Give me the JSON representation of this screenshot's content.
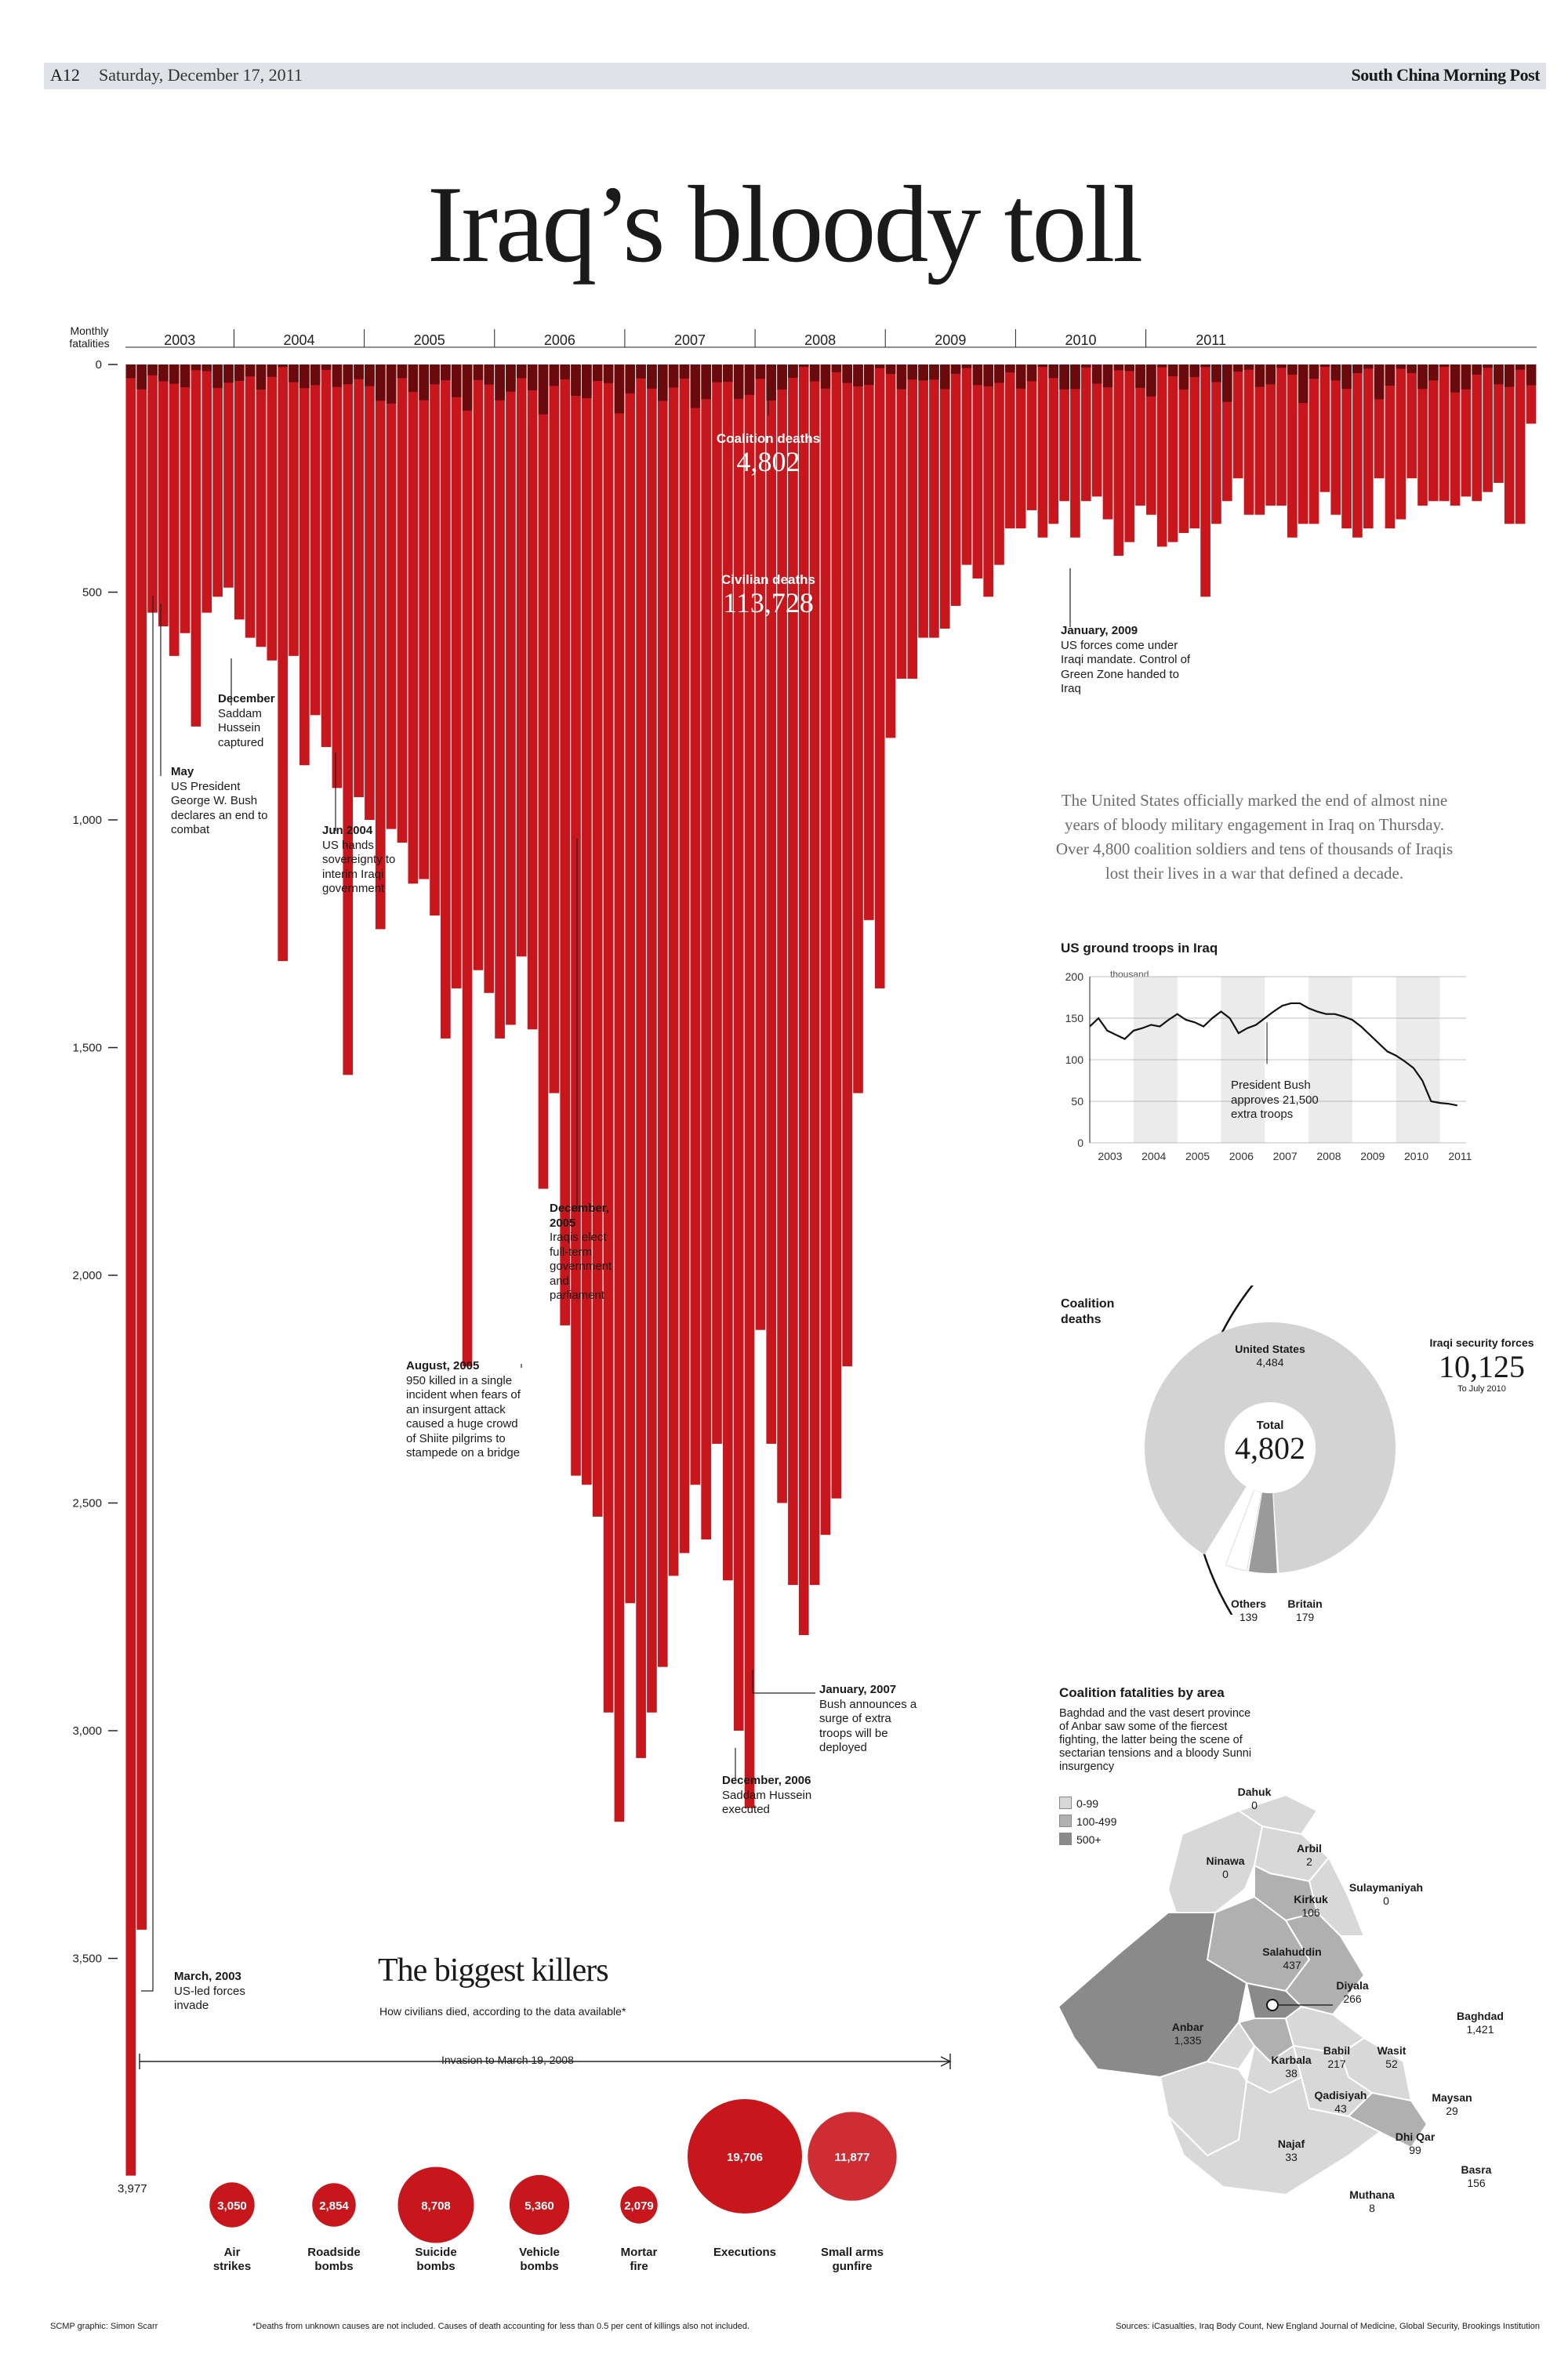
{
  "masthead": {
    "page": "A12",
    "date": "Saturday, December 17, 2011",
    "publication": "South China Morning Post"
  },
  "title": "Iraq’s bloody toll",
  "chart_data": [
    {
      "type": "bar",
      "ylabel": "Monthly fatalities",
      "ylim": [
        0,
        3977
      ],
      "y_inverted": true,
      "yticks": [
        "0",
        "500",
        "1,000",
        "1,500",
        "2,000",
        "2,500",
        "3,000",
        "3,500"
      ],
      "ytick_values": [
        0,
        500,
        1000,
        1500,
        2000,
        2500,
        3000,
        3500
      ],
      "year_labels": [
        "2003",
        "2004",
        "2005",
        "2006",
        "2007",
        "2008",
        "2009",
        "2010",
        "2011"
      ],
      "start_month": "2003-03",
      "civilian_values": [
        3977,
        3437,
        545,
        575,
        640,
        590,
        795,
        545,
        510,
        490,
        560,
        600,
        620,
        650,
        1310,
        640,
        880,
        770,
        840,
        930,
        1560,
        950,
        1000,
        1240,
        1020,
        1050,
        1140,
        1130,
        1210,
        1480,
        1370,
        2200,
        1330,
        1380,
        1480,
        1450,
        1300,
        1460,
        1810,
        1600,
        2110,
        2440,
        2460,
        2530,
        2960,
        3200,
        2720,
        3060,
        2960,
        2860,
        2660,
        2610,
        2460,
        2580,
        2370,
        2670,
        3000,
        3170,
        2120,
        2370,
        2500,
        2680,
        2790,
        2680,
        2570,
        2490,
        2200,
        1600,
        1220,
        1370,
        820,
        690,
        690,
        600,
        600,
        580,
        530,
        440,
        470,
        510,
        440,
        360,
        360,
        320,
        380,
        350,
        300,
        380,
        300,
        290,
        340,
        420,
        390,
        310,
        330,
        400,
        390,
        370,
        360,
        510,
        350,
        300,
        250,
        330,
        330,
        310,
        310,
        380,
        350,
        350,
        280,
        330,
        360,
        380,
        360,
        250,
        360,
        340,
        250,
        310,
        300,
        300,
        310,
        290,
        300,
        280,
        260,
        350,
        350,
        130
      ],
      "coalition_deaths": "4,802",
      "coalition_label": "Coalition deaths",
      "civilian_deaths": "113,728",
      "civilian_label": "Civilian deaths",
      "colors": {
        "civilian": "#c8161d",
        "coalition": "#6a0a0d"
      }
    },
    {
      "type": "line",
      "title": "US ground troops in Iraq",
      "yticks": [
        0,
        50,
        100,
        150,
        200
      ],
      "ylim": [
        0,
        200
      ],
      "yunit": "thousand",
      "xlabels": [
        "2003",
        "2004",
        "2005",
        "2006",
        "2007",
        "2008",
        "2009",
        "2010",
        "2011"
      ],
      "x": [
        2003.0,
        2003.2,
        2003.4,
        2003.6,
        2003.8,
        2004.0,
        2004.2,
        2004.4,
        2004.6,
        2004.8,
        2005.0,
        2005.2,
        2005.4,
        2005.6,
        2005.8,
        2006.0,
        2006.2,
        2006.4,
        2006.6,
        2006.8,
        2007.0,
        2007.2,
        2007.4,
        2007.6,
        2007.8,
        2008.0,
        2008.2,
        2008.4,
        2008.6,
        2008.8,
        2009.0,
        2009.2,
        2009.4,
        2009.6,
        2009.8,
        2010.0,
        2010.2,
        2010.4,
        2010.6,
        2010.8,
        2011.0,
        2011.2,
        2011.4
      ],
      "y": [
        140,
        150,
        135,
        130,
        125,
        135,
        138,
        142,
        140,
        148,
        155,
        148,
        145,
        140,
        150,
        158,
        150,
        132,
        138,
        142,
        150,
        158,
        165,
        168,
        168,
        162,
        158,
        155,
        155,
        152,
        148,
        140,
        130,
        120,
        110,
        105,
        98,
        90,
        75,
        50,
        48,
        47,
        45
      ],
      "annotation": "President Bush approves 21,500 extra troops"
    },
    {
      "type": "pie",
      "title": "Coalition deaths",
      "labels": [
        "United States",
        "Britain",
        "Others"
      ],
      "values": [
        4484,
        179,
        139
      ],
      "value_labels": [
        "4,484",
        "179",
        "139"
      ],
      "total_label": "Total",
      "total": "4,802",
      "comparison": {
        "label": "Iraqi security forces",
        "value": "10,125",
        "note": "To July 2010"
      }
    },
    {
      "type": "bubble",
      "title": "The biggest killers",
      "subtitle": "How civilians died, according to the data available*",
      "period": "Invasion to March 19, 2008",
      "categories": [
        "Air strikes",
        "Roadside bombs",
        "Suicide bombs",
        "Vehicle bombs",
        "Mortar fire",
        "Executions",
        "Small arms gunfire"
      ],
      "values": [
        3050,
        2854,
        8708,
        5360,
        2079,
        19706,
        11877
      ],
      "value_labels": [
        "3,050",
        "2,854",
        "8,708",
        "5,360",
        "2,079",
        "19,706",
        "11,877"
      ]
    }
  ],
  "annotations": {
    "mar2003": {
      "head": "March, 2003",
      "body": "US-led forces invade"
    },
    "may2003": {
      "head": "May",
      "body": "US President George W. Bush declares an end to combat"
    },
    "dec2003": {
      "head": "December",
      "body": "Saddam Hussein captured"
    },
    "jun2004": {
      "head": "Jun 2004",
      "body": "US hands sovereignty to interim Iraqi government"
    },
    "aug2005": {
      "head": "August, 2005",
      "body": "950 killed in a single incident when fears of an insurgent attack caused a huge crowd of Shiite pilgrims to stampede on a bridge"
    },
    "dec2005": {
      "head": "December, 2005",
      "body": "Iraqis elect full-term government and parliament"
    },
    "dec2006": {
      "head": "December, 2006",
      "body": "Saddam Hussein executed"
    },
    "jan2007": {
      "head": "January, 2007",
      "body": "Bush announces a surge of extra troops will be deployed"
    },
    "jan2009": {
      "head": "January, 2009",
      "body": "US forces come under Iraqi mandate. Control of Green Zone handed to Iraq"
    },
    "min_value": "3,977"
  },
  "intro": "The United States officially marked the end of almost nine years of bloody military engagement in Iraq on Thursday. Over 4,800 coalition soldiers and tens of thousands of Iraqis lost their lives in a war that defined a decade.",
  "map": {
    "title": "Coalition fatalities by area",
    "desc": "Baghdad and the vast desert province of Anbar saw some of the fiercest fighting, the latter being the scene of sectarian tensions and a bloody Sunni insurgency",
    "legend": [
      {
        "label": "0-99",
        "color": "#d8d8d8"
      },
      {
        "label": "100-499",
        "color": "#b0b0b0"
      },
      {
        "label": "500+",
        "color": "#8a8a8a"
      }
    ],
    "regions": [
      {
        "name": "Dahuk",
        "value": "0"
      },
      {
        "name": "Ninawa",
        "value": "0"
      },
      {
        "name": "Arbil",
        "value": "2"
      },
      {
        "name": "Sulaymaniyah",
        "value": "0"
      },
      {
        "name": "Kirkuk",
        "value": "106"
      },
      {
        "name": "Salahuddin",
        "value": "437"
      },
      {
        "name": "Diyala",
        "value": "266"
      },
      {
        "name": "Baghdad",
        "value": "1,421"
      },
      {
        "name": "Anbar",
        "value": "1,335"
      },
      {
        "name": "Babil",
        "value": "217"
      },
      {
        "name": "Karbala",
        "value": "38"
      },
      {
        "name": "Wasit",
        "value": "52"
      },
      {
        "name": "Qadisiyah",
        "value": "43"
      },
      {
        "name": "Maysan",
        "value": "29"
      },
      {
        "name": "Najaf",
        "value": "33"
      },
      {
        "name": "Dhi Qar",
        "value": "99"
      },
      {
        "name": "Basra",
        "value": "156"
      },
      {
        "name": "Muthana",
        "value": "8"
      }
    ]
  },
  "footer": {
    "credit": "SCMP graphic: Simon Scarr",
    "footnote": "*Deaths from unknown causes are not included. Causes of death accounting for less than 0.5 per cent of killings also not included.",
    "sources": "Sources: iCasualties, Iraq Body Count, New England Journal of Medicine, Global Security, Brookings Institution"
  }
}
